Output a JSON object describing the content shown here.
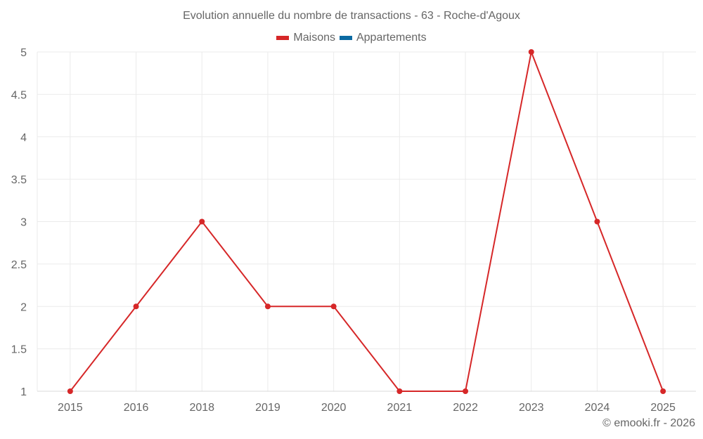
{
  "header": {
    "title": "Evolution annuelle du nombre de transactions - 63 - Roche-d'Agoux"
  },
  "legend": {
    "items": [
      {
        "label": "Maisons",
        "color": "#d62728"
      },
      {
        "label": "Appartements",
        "color": "#0b6aa2"
      }
    ]
  },
  "footer": {
    "credit": "© emooki.fr - 2026"
  },
  "colors": {
    "series_line": "#d62728",
    "grid": "#ebebeb",
    "axis": "#d9d9d9",
    "text": "#666666"
  },
  "chart_data": {
    "type": "line",
    "title": "Evolution annuelle du nombre de transactions - 63 - Roche-d'Agoux",
    "xlabel": "",
    "ylabel": "",
    "categories": [
      "2015",
      "2016",
      "2018",
      "2019",
      "2020",
      "2021",
      "2022",
      "2023",
      "2024",
      "2025"
    ],
    "series": [
      {
        "name": "Maisons",
        "color": "#d62728",
        "values": [
          1,
          2,
          3,
          2,
          2,
          1,
          1,
          5,
          3,
          1
        ]
      },
      {
        "name": "Appartements",
        "color": "#0b6aa2",
        "values": []
      }
    ],
    "ylim": [
      1,
      5
    ],
    "yticks": [
      1,
      1.5,
      2,
      2.5,
      3,
      3.5,
      4,
      4.5,
      5
    ],
    "ytick_labels": [
      "1",
      "1.5",
      "2",
      "2.5",
      "3",
      "3.5",
      "4",
      "4.5",
      "5"
    ],
    "grid": true,
    "legend_position": "top-center"
  }
}
